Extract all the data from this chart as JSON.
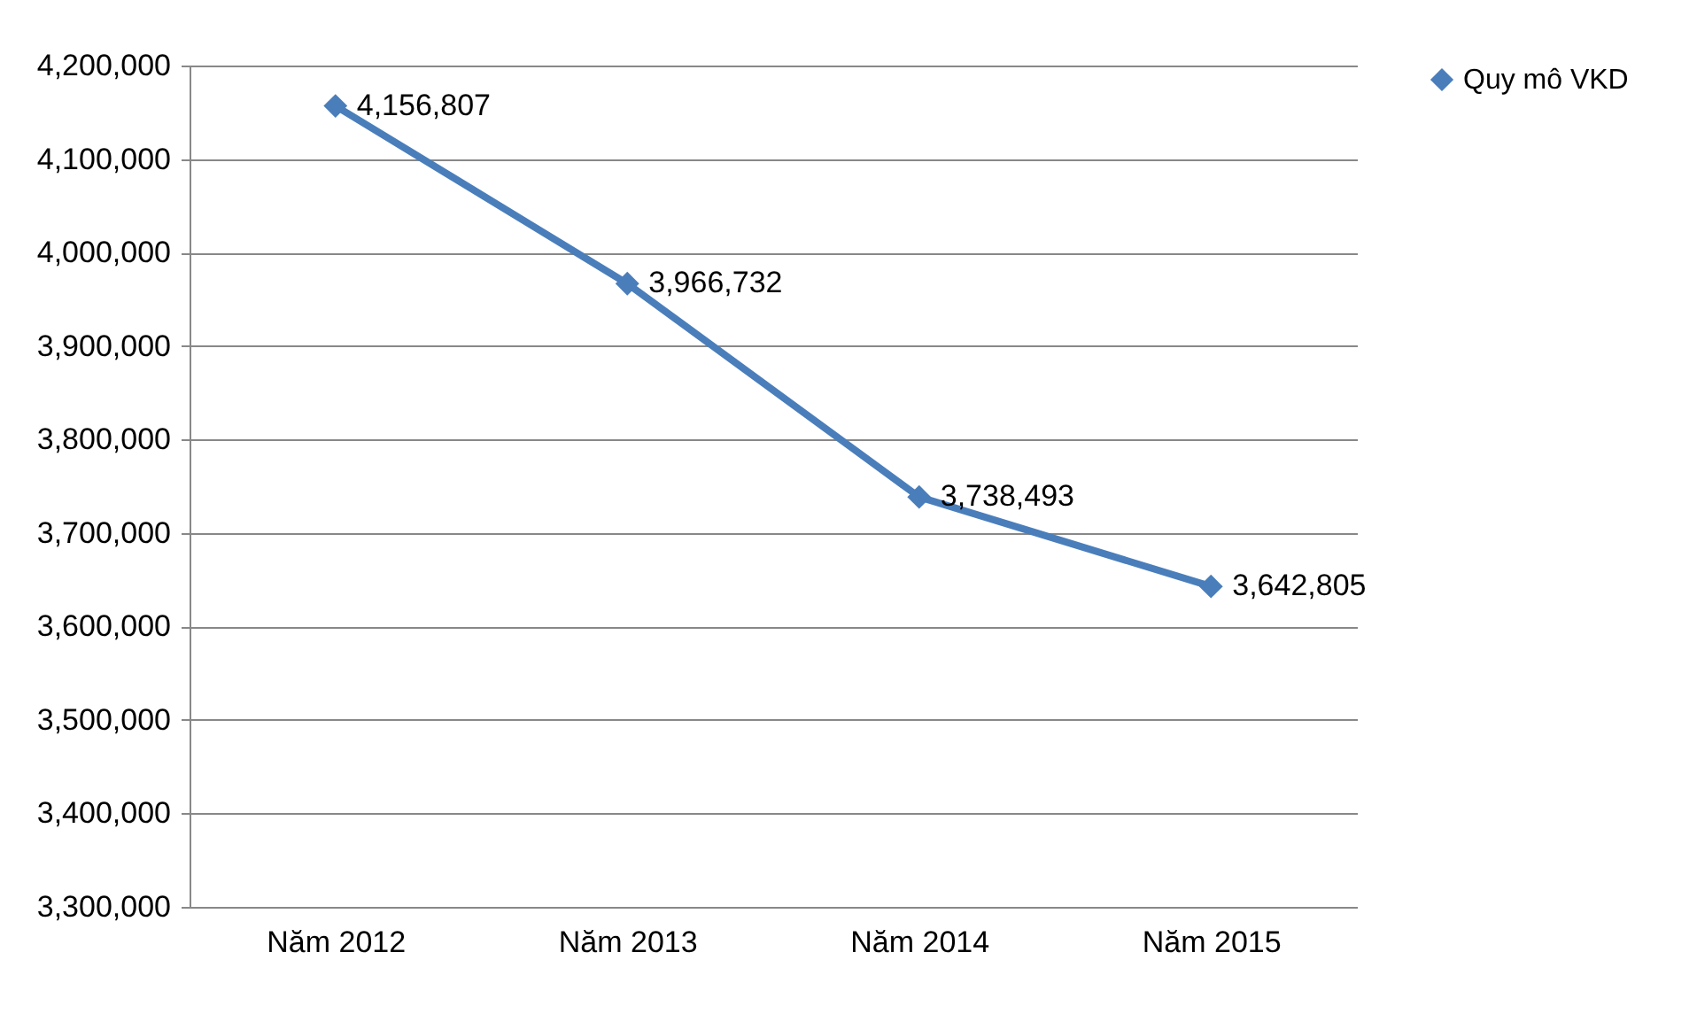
{
  "chart_data": {
    "type": "line",
    "categories": [
      "Năm 2012",
      "Năm 2013",
      "Năm 2014",
      "Năm 2015"
    ],
    "series": [
      {
        "name": "Quy mô VKD",
        "color": "#4a7ebb",
        "values": [
          4156807,
          3966732,
          3738493,
          3642805
        ],
        "value_labels": [
          "4,156,807",
          "3,966,732",
          "3,738,493",
          "3,642,805"
        ]
      }
    ],
    "ylim": [
      3300000,
      4200000
    ],
    "yticks": [
      {
        "value": 3300000,
        "label": "3,300,000"
      },
      {
        "value": 3400000,
        "label": "3,400,000"
      },
      {
        "value": 3500000,
        "label": "3,500,000"
      },
      {
        "value": 3600000,
        "label": "3,600,000"
      },
      {
        "value": 3700000,
        "label": "3,700,000"
      },
      {
        "value": 3800000,
        "label": "3,800,000"
      },
      {
        "value": 3900000,
        "label": "3,900,000"
      },
      {
        "value": 4000000,
        "label": "4,000,000"
      },
      {
        "value": 4100000,
        "label": "4,100,000"
      },
      {
        "value": 4200000,
        "label": "4,200,000"
      }
    ],
    "grid": "y",
    "legend": "right",
    "marker": "diamond",
    "line_style": "solid"
  }
}
